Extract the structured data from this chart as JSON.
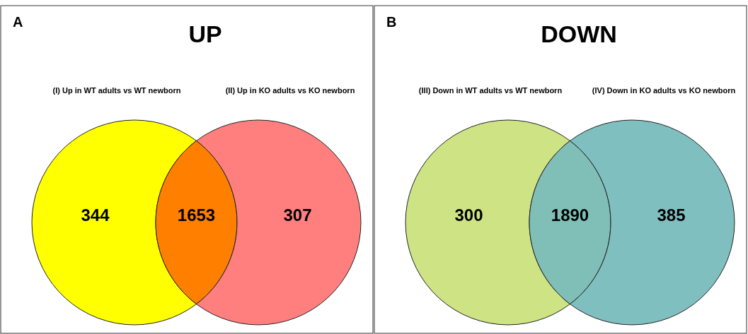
{
  "chart_data": [
    {
      "type": "other",
      "title": "UP",
      "annotations": [
        "A",
        "(I) Up in WT adults vs WT newborn",
        "(II) Up in KO adults vs KO newborn"
      ],
      "categories": [
        null,
        null,
        null
      ],
      "values": [
        344,
        1653,
        307
      ],
      "colors": [
        "#ffff00",
        "#ff8000",
        "#ff7f7f"
      ],
      "data_labels": true
    },
    {
      "type": "other",
      "title": "DOWN",
      "annotations": [
        "B",
        "(III) Down in WT adults vs WT newborn",
        "(IV) Down in KO adults vs KO newborn"
      ],
      "categories": [
        null,
        null,
        null
      ],
      "values": [
        300,
        1890,
        385
      ],
      "colors": [
        "#cde384",
        "#80bfb8",
        "#80bfbf"
      ],
      "data_labels": true
    }
  ]
}
